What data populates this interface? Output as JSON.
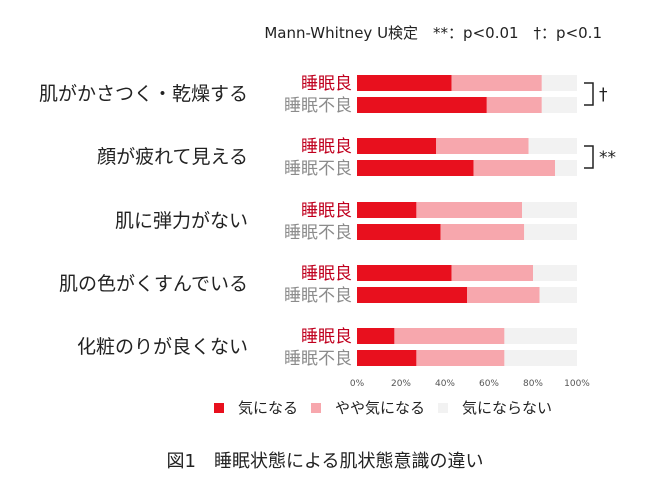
{
  "note": "Mann-Whitney U検定　**：p<0.01　†：p<0.1",
  "caption": "図1　睡眠状態による肌状態意識の違い",
  "colors": {
    "good_label": "#c0001e",
    "poor_label": "#8c8c8c"
  },
  "chart_data": {
    "type": "bar",
    "orientation": "horizontal",
    "stacked": true,
    "percent": true,
    "xlim": [
      0,
      100
    ],
    "xticks": [
      "0%",
      "20%",
      "40%",
      "60%",
      "80%",
      "100%"
    ],
    "series": [
      {
        "name": "気になる",
        "color": "#e8101e"
      },
      {
        "name": "やや気になる",
        "color": "#f7a7ad"
      },
      {
        "name": "気にならない",
        "color": "#f2f2f2"
      }
    ],
    "groups": [
      {
        "category": "肌がかさつく・乾燥する",
        "significance": "†",
        "bars": [
          {
            "label": "睡眠良",
            "values": [
              43,
              41,
              16
            ]
          },
          {
            "label": "睡眠不良",
            "values": [
              59,
              25,
              16
            ]
          }
        ]
      },
      {
        "category": "顔が疲れて見える",
        "significance": "**",
        "bars": [
          {
            "label": "睡眠良",
            "values": [
              36,
              42,
              22
            ]
          },
          {
            "label": "睡眠不良",
            "values": [
              53,
              37,
              10
            ]
          }
        ]
      },
      {
        "category": "肌に弾力がない",
        "significance": "",
        "bars": [
          {
            "label": "睡眠良",
            "values": [
              27,
              48,
              25
            ]
          },
          {
            "label": "睡眠不良",
            "values": [
              38,
              38,
              24
            ]
          }
        ]
      },
      {
        "category": "肌の色がくすんでいる",
        "significance": "",
        "bars": [
          {
            "label": "睡眠良",
            "values": [
              43,
              37,
              20
            ]
          },
          {
            "label": "睡眠不良",
            "values": [
              50,
              33,
              17
            ]
          }
        ]
      },
      {
        "category": "化粧のりが良くない",
        "significance": "",
        "bars": [
          {
            "label": "睡眠良",
            "values": [
              17,
              50,
              33
            ]
          },
          {
            "label": "睡眠不良",
            "values": [
              27,
              40,
              33
            ]
          }
        ]
      }
    ]
  }
}
